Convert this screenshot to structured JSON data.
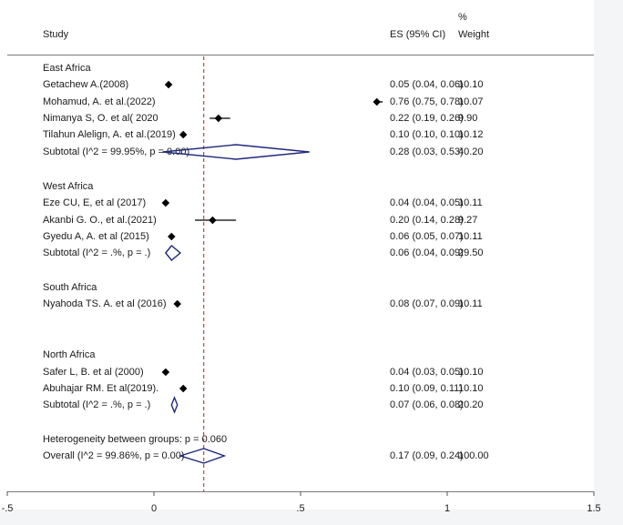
{
  "headers": {
    "study": "Study",
    "es": "ES (95% CI)",
    "weight_pct": "%",
    "weight": "Weight"
  },
  "groups": [
    {
      "title": "East Africa",
      "studies": [
        {
          "label": "Getachew A.(2008)",
          "es_text": "0.05 (0.04, 0.06)",
          "weight_text": "10.10"
        },
        {
          "label": "Mohamud, A. et al.(2022)",
          "es_text": "0.76 (0.75, 0.78)",
          "weight_text": "10.07"
        },
        {
          "label": "Nimanya S, O. et al( 2020",
          "es_text": "0.22 (0.19, 0.26)",
          "weight_text": "9.90"
        },
        {
          "label": "Tilahun Alelign, A. et al.(2019)",
          "es_text": "0.10 (0.10, 0.10)",
          "weight_text": "10.12"
        }
      ],
      "subtotal": {
        "label": "Subtotal  (I^2 = 99.95%, p = 0.00)",
        "es_text": "0.28 (0.03, 0.53)",
        "weight_text": "40.20"
      }
    },
    {
      "title": "West Africa",
      "studies": [
        {
          "label": "Eze CU, E, et al (2017)",
          "es_text": "0.04 (0.04, 0.05)",
          "weight_text": "10.11"
        },
        {
          "label": "Akanbi G. O., et al.(2021)",
          "es_text": "0.20 (0.14, 0.28)",
          "weight_text": "9.27"
        },
        {
          "label": "Gyedu A, A. et al (2015)",
          "es_text": "0.06 (0.05, 0.07)",
          "weight_text": "10.11"
        }
      ],
      "subtotal": {
        "label": "Subtotal  (I^2 = .%, p = .)",
        "es_text": "0.06 (0.04, 0.09)",
        "weight_text": "29.50"
      }
    },
    {
      "title": "South Africa",
      "studies": [
        {
          "label": "Nyahoda TS. A. et al (2016)",
          "es_text": "0.08 (0.07, 0.09)",
          "weight_text": "10.11"
        }
      ],
      "subtotal": null
    },
    {
      "title": "North Africa",
      "studies": [
        {
          "label": "Safer L, B. et al (2000)",
          "es_text": "0.04 (0.03, 0.05)",
          "weight_text": "10.10"
        },
        {
          "label": "Abuhajar RM. Et al(2019).",
          "es_text": "0.10 (0.09, 0.11)",
          "weight_text": "10.10"
        }
      ],
      "subtotal": {
        "label": "Subtotal  (I^2 = .%, p = .)",
        "es_text": "0.07 (0.06, 0.08)",
        "weight_text": "20.20"
      }
    }
  ],
  "heterogeneity": "Heterogeneity between groups: p = 0.060",
  "overall": {
    "label": "Overall  (I^2 = 99.86%, p = 0.00)",
    "es_text": "0.17 (0.09, 0.24)",
    "weight_text": "100.00"
  },
  "chart_data": {
    "type": "scatter",
    "subtype": "forest-plot",
    "xlim": [
      -0.5,
      1.5
    ],
    "x_ticks": [
      {
        "value": -0.5,
        "label": "-.5"
      },
      {
        "value": 0,
        "label": "0"
      },
      {
        "value": 0.5,
        "label": ".5"
      },
      {
        "value": 1,
        "label": "1"
      },
      {
        "value": 1.5,
        "label": "1.5"
      }
    ],
    "reference_line": 0.17,
    "reference_line_style": "dashed",
    "colors": {
      "diamond": "#1f2a7a",
      "reference": "#b22222",
      "marker": "#000000"
    },
    "points": [
      {
        "group": "East Africa",
        "study": "Getachew A.(2008)",
        "es": 0.05,
        "lo": 0.04,
        "hi": 0.06
      },
      {
        "group": "East Africa",
        "study": "Mohamud, A. et al.(2022)",
        "es": 0.76,
        "lo": 0.75,
        "hi": 0.78
      },
      {
        "group": "East Africa",
        "study": "Nimanya S, O. et al( 2020",
        "es": 0.22,
        "lo": 0.19,
        "hi": 0.26
      },
      {
        "group": "East Africa",
        "study": "Tilahun Alelign, A. et al.(2019)",
        "es": 0.1,
        "lo": 0.1,
        "hi": 0.1
      },
      {
        "group": "West Africa",
        "study": "Eze CU, E, et al (2017)",
        "es": 0.04,
        "lo": 0.04,
        "hi": 0.05
      },
      {
        "group": "West Africa",
        "study": "Akanbi G. O., et al.(2021)",
        "es": 0.2,
        "lo": 0.14,
        "hi": 0.28
      },
      {
        "group": "West Africa",
        "study": "Gyedu A, A. et al (2015)",
        "es": 0.06,
        "lo": 0.05,
        "hi": 0.07
      },
      {
        "group": "South Africa",
        "study": "Nyahoda TS. A. et al (2016)",
        "es": 0.08,
        "lo": 0.07,
        "hi": 0.09
      },
      {
        "group": "North Africa",
        "study": "Safer L, B. et al (2000)",
        "es": 0.04,
        "lo": 0.03,
        "hi": 0.05
      },
      {
        "group": "North Africa",
        "study": "Abuhajar RM. Et al(2019).",
        "es": 0.1,
        "lo": 0.09,
        "hi": 0.11
      }
    ],
    "diamonds": [
      {
        "name": "East Africa subtotal",
        "es": 0.28,
        "lo": 0.03,
        "hi": 0.53
      },
      {
        "name": "West Africa subtotal",
        "es": 0.06,
        "lo": 0.04,
        "hi": 0.09
      },
      {
        "name": "North Africa subtotal",
        "es": 0.07,
        "lo": 0.06,
        "hi": 0.08
      },
      {
        "name": "Overall",
        "es": 0.17,
        "lo": 0.09,
        "hi": 0.24
      }
    ]
  }
}
